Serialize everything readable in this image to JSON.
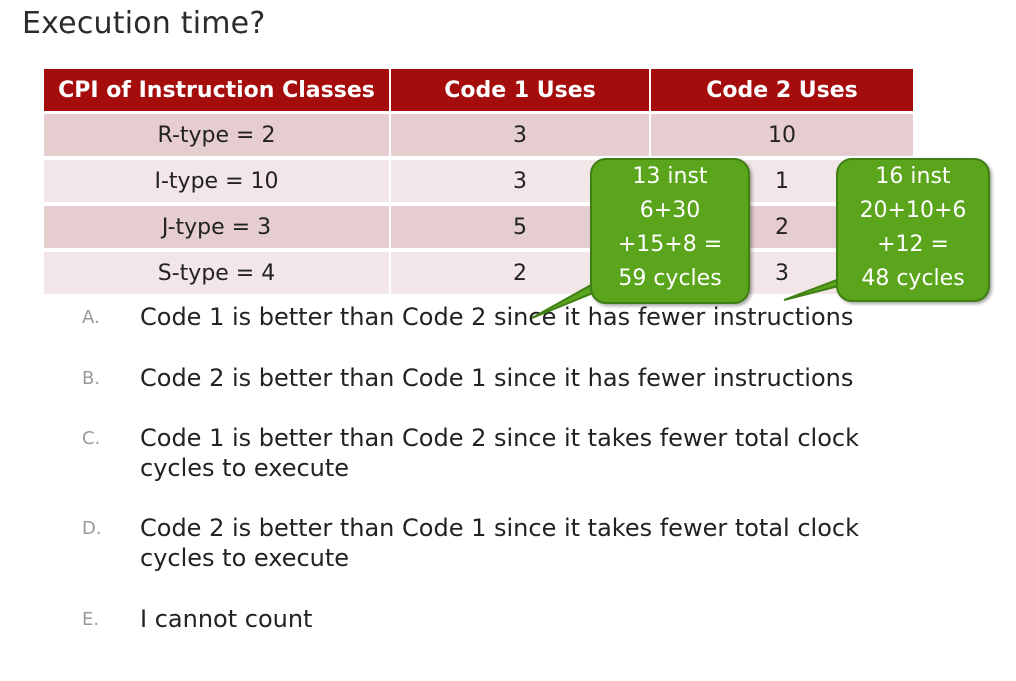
{
  "slide": {
    "title": "Execution time?"
  },
  "table": {
    "headers": [
      "CPI of Instruction Classes",
      "Code 1 Uses",
      "Code 2 Uses"
    ],
    "rows": [
      [
        "R-type = 2",
        "3",
        "10"
      ],
      [
        "I-type = 10",
        "3",
        "1"
      ],
      [
        "J-type = 3",
        "5",
        "2"
      ],
      [
        "S-type = 4",
        "2",
        "3"
      ]
    ]
  },
  "callouts": {
    "code1": [
      "13 inst",
      "6+30",
      "+15+8 =",
      "59 cycles"
    ],
    "code2": [
      "16 inst",
      "20+10+6",
      "+12 =",
      "48 cycles"
    ]
  },
  "options": [
    {
      "letter": "A.",
      "text": "Code 1 is better than Code 2 since it has fewer instructions"
    },
    {
      "letter": "B.",
      "text": "Code 2 is better than Code 1 since it has fewer instructions"
    },
    {
      "letter": "C.",
      "text": "Code 1 is better than Code 2 since it takes fewer total clock cycles to execute"
    },
    {
      "letter": "D.",
      "text": "Code 2 is better than Code 1 since it takes fewer total clock cycles to execute"
    },
    {
      "letter": "E.",
      "text": "I cannot count"
    }
  ],
  "colors": {
    "header_red": "#a50c0c",
    "row_dark": "#e6cdd0",
    "row_light": "#f2e6e8",
    "callout_green": "#5aa51c"
  }
}
